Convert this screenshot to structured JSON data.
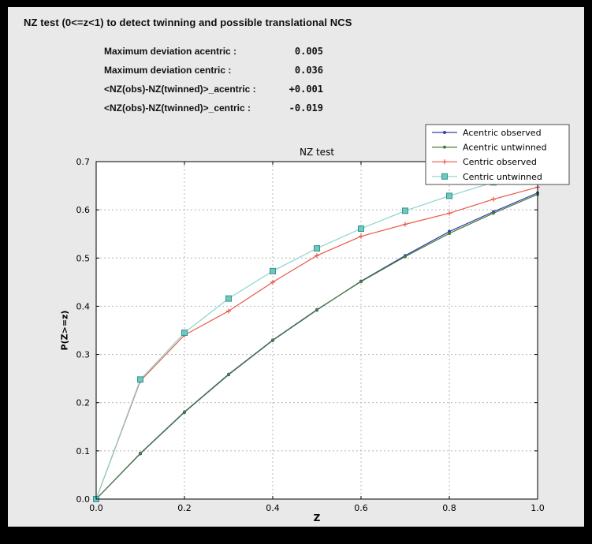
{
  "window_title": "NZ test (0<=z<1) to detect twinning and possible translational NCS",
  "stats": {
    "rows": [
      {
        "label": "Maximum deviation acentric :",
        "value": "0.005"
      },
      {
        "label": "Maximum deviation centric :",
        "value": "0.036"
      },
      {
        "label": "<NZ(obs)-NZ(twinned)>_acentric :",
        "value": "+0.001"
      },
      {
        "label": "<NZ(obs)-NZ(twinned)>_centric :",
        "value": "-0.019"
      }
    ]
  },
  "chart_data": {
    "type": "line",
    "title": "NZ test",
    "xlabel": "Z",
    "ylabel": "P(Z>=z)",
    "xlim": [
      0.0,
      1.0
    ],
    "ylim": [
      0.0,
      0.7
    ],
    "xticks": [
      0.0,
      0.2,
      0.4,
      0.6,
      0.8,
      1.0
    ],
    "xtick_labels": [
      "0.0",
      "0.2",
      "0.4",
      "0.6",
      "0.8",
      "1.0"
    ],
    "yticks": [
      0.0,
      0.1,
      0.2,
      0.3,
      0.4,
      0.5,
      0.6,
      0.7
    ],
    "ytick_labels": [
      "0.0",
      "0.1",
      "0.2",
      "0.3",
      "0.4",
      "0.5",
      "0.6",
      "0.7"
    ],
    "grid": true,
    "legend_position": "top-right",
    "x": [
      0.0,
      0.1,
      0.2,
      0.3,
      0.4,
      0.5,
      0.6,
      0.7,
      0.8,
      0.9,
      1.0
    ],
    "series": [
      {
        "name": "Acentric observed",
        "color": "#3140a8",
        "marker": "dot",
        "values": [
          0.0,
          0.094,
          0.18,
          0.258,
          0.329,
          0.392,
          0.452,
          0.505,
          0.555,
          0.596,
          0.635
        ]
      },
      {
        "name": "Acentric untwinned",
        "color": "#4a7b3c",
        "marker": "dot",
        "values": [
          0.0,
          0.095,
          0.181,
          0.259,
          0.33,
          0.393,
          0.451,
          0.503,
          0.551,
          0.593,
          0.632
        ]
      },
      {
        "name": "Centric observed",
        "color": "#e8584a",
        "marker": "plus",
        "values": [
          0.0,
          0.245,
          0.34,
          0.39,
          0.45,
          0.505,
          0.545,
          0.57,
          0.593,
          0.622,
          0.647
        ]
      },
      {
        "name": "Centric untwinned",
        "color": "#8ad4cd",
        "marker": "square",
        "marker_fill": "#6cc8c0",
        "marker_edge": "#35948c",
        "values": [
          0.0,
          0.248,
          0.345,
          0.416,
          0.473,
          0.52,
          0.561,
          0.598,
          0.629,
          0.657,
          0.683
        ]
      }
    ],
    "colors": {
      "grid": "#b4b4b4",
      "plot_bg": "#ffffff",
      "figure_bg": "#e9e9e9",
      "frame": "#000000",
      "legend_border": "#4d4d4d"
    }
  }
}
